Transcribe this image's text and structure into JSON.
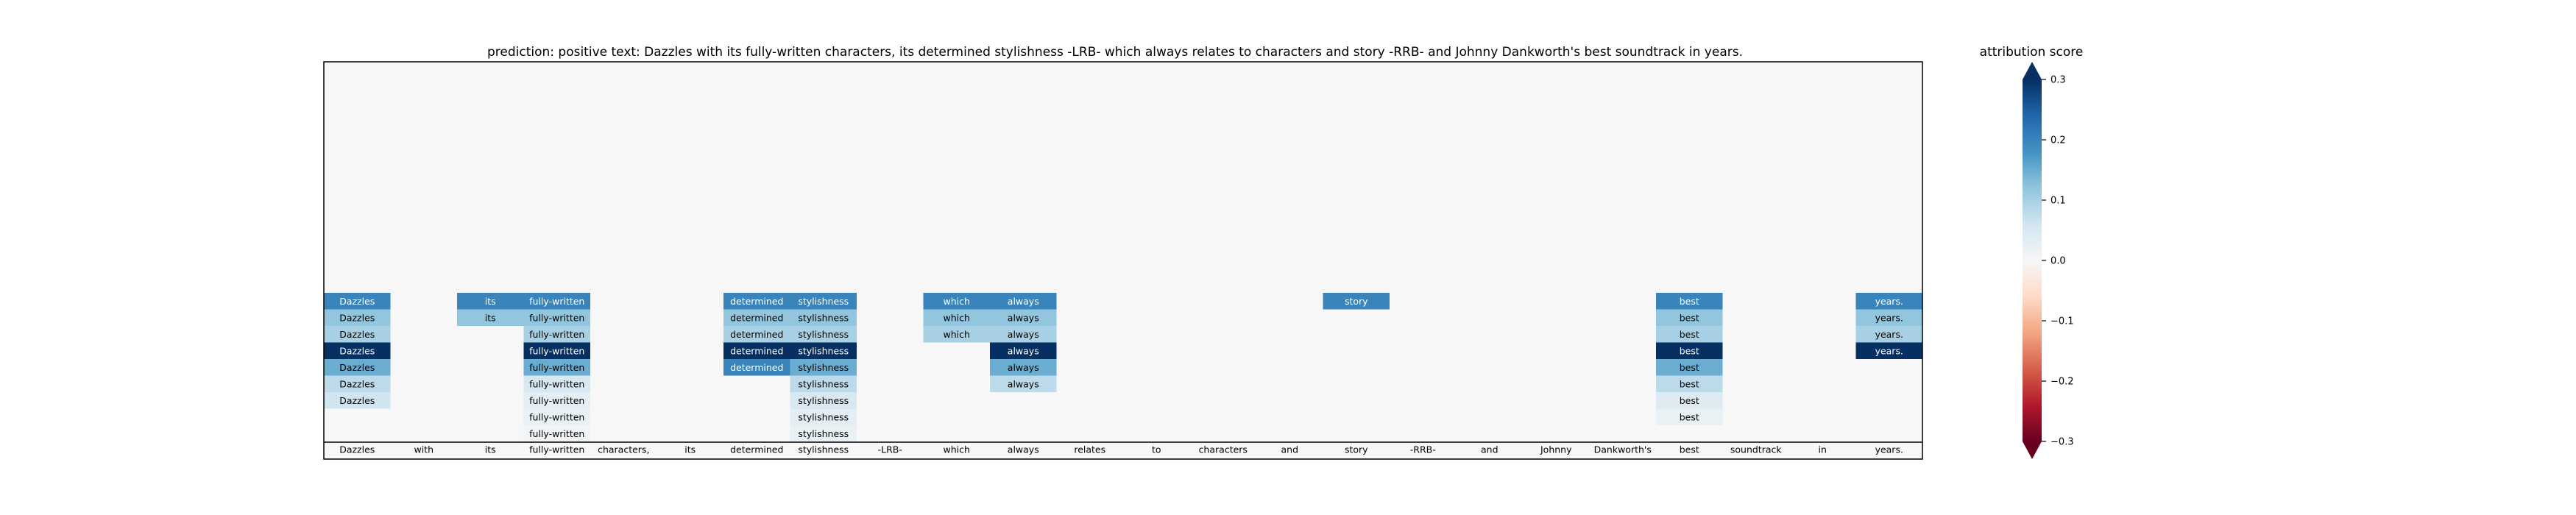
{
  "chart_data": {
    "type": "heatmap",
    "title": "prediction:  positive     text:  Dazzles with its fully-written characters, its determined stylishness -LRB- which always relates to characters and story -RRB- and Johnny Dankworth's best soundtrack in years.",
    "tokens": [
      "Dazzles",
      "with",
      "its",
      "fully-written",
      "characters,",
      "its",
      "determined",
      "stylishness",
      "-LRB-",
      "which",
      "always",
      "relates",
      "to",
      "characters",
      "and",
      "story",
      "-RRB-",
      "and",
      "Johnny",
      "Dankworth's",
      "best",
      "soundtrack",
      "in",
      "years."
    ],
    "rows": [
      [
        {
          "i": 0,
          "v": 0.2
        },
        {
          "i": 2,
          "v": 0.2
        },
        {
          "i": 3,
          "v": 0.2
        },
        {
          "i": 6,
          "v": 0.2
        },
        {
          "i": 7,
          "v": 0.2
        },
        {
          "i": 9,
          "v": 0.2
        },
        {
          "i": 10,
          "v": 0.2
        },
        {
          "i": 15,
          "v": 0.2
        },
        {
          "i": 20,
          "v": 0.2
        },
        {
          "i": 23,
          "v": 0.2
        }
      ],
      [
        {
          "i": 0,
          "v": 0.12
        },
        {
          "i": 2,
          "v": 0.12
        },
        {
          "i": 3,
          "v": 0.12
        },
        {
          "i": 6,
          "v": 0.12
        },
        {
          "i": 7,
          "v": 0.12
        },
        {
          "i": 9,
          "v": 0.12
        },
        {
          "i": 10,
          "v": 0.12
        },
        {
          "i": 20,
          "v": 0.12
        },
        {
          "i": 23,
          "v": 0.12
        }
      ],
      [
        {
          "i": 0,
          "v": 0.1
        },
        {
          "i": 3,
          "v": 0.1
        },
        {
          "i": 6,
          "v": 0.1
        },
        {
          "i": 7,
          "v": 0.1
        },
        {
          "i": 9,
          "v": 0.1
        },
        {
          "i": 10,
          "v": 0.1
        },
        {
          "i": 20,
          "v": 0.1
        },
        {
          "i": 23,
          "v": 0.1
        }
      ],
      [
        {
          "i": 0,
          "v": 0.3
        },
        {
          "i": 3,
          "v": 0.3
        },
        {
          "i": 6,
          "v": 0.3
        },
        {
          "i": 7,
          "v": 0.3
        },
        {
          "i": 10,
          "v": 0.3
        },
        {
          "i": 20,
          "v": 0.3
        },
        {
          "i": 23,
          "v": 0.3
        }
      ],
      [
        {
          "i": 0,
          "v": 0.15
        },
        {
          "i": 3,
          "v": 0.15
        },
        {
          "i": 6,
          "v": 0.2
        },
        {
          "i": 7,
          "v": 0.15
        },
        {
          "i": 10,
          "v": 0.15
        },
        {
          "i": 20,
          "v": 0.15
        }
      ],
      [
        {
          "i": 0,
          "v": 0.08
        },
        {
          "i": 3,
          "v": 0.05
        },
        {
          "i": 7,
          "v": 0.08
        },
        {
          "i": 10,
          "v": 0.08
        },
        {
          "i": 20,
          "v": 0.08
        }
      ],
      [
        {
          "i": 0,
          "v": 0.06
        },
        {
          "i": 3,
          "v": 0.03
        },
        {
          "i": 7,
          "v": 0.05
        },
        {
          "i": 20,
          "v": 0.04
        }
      ],
      [
        {
          "i": 3,
          "v": 0.02
        },
        {
          "i": 7,
          "v": 0.03
        },
        {
          "i": 20,
          "v": 0.02
        }
      ],
      [
        {
          "i": 3,
          "v": 0.01
        },
        {
          "i": 7,
          "v": 0.02
        }
      ]
    ],
    "colorbar": {
      "title": "attribution score",
      "vmin": -0.3,
      "vmax": 0.3,
      "ticks": [
        0.3,
        0.2,
        0.1,
        0.0,
        -0.1,
        -0.2,
        -0.3
      ],
      "tick_labels": [
        "0.3",
        "0.2",
        "0.1",
        "0.0",
        "−0.1",
        "−0.2",
        "−0.3"
      ]
    }
  }
}
